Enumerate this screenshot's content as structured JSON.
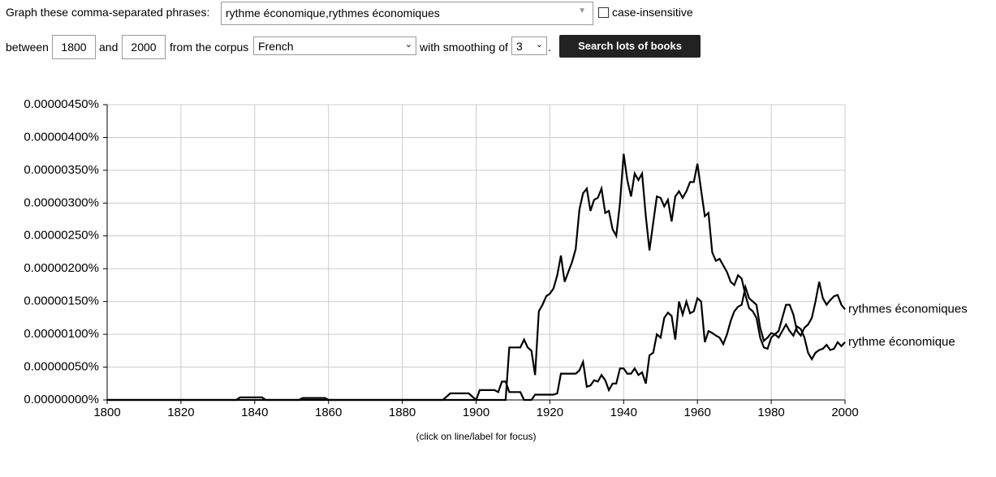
{
  "form": {
    "phrases_label": "Graph these comma-separated phrases:",
    "phrases": "rythme économique,rythmes économiques",
    "case_label": "case-insensitive",
    "between": "between",
    "start": "1800",
    "and": "and",
    "end": "2000",
    "corpus_label": "from the corpus",
    "corpus": "French",
    "smoothing_label": "with smoothing of",
    "smoothing": "3",
    "period": ".",
    "button": "Search lots of books"
  },
  "chart_data": {
    "type": "line",
    "note": "(click on line/label for focus)",
    "xlim": [
      1800,
      2000
    ],
    "xticks": [
      1800,
      1820,
      1840,
      1860,
      1880,
      1900,
      1920,
      1940,
      1960,
      1980,
      2000
    ],
    "ylim": [
      0,
      4.5e-06
    ],
    "yticks": [
      {
        "value": 0,
        "label": "0.00000000%"
      },
      {
        "value": 5e-07,
        "label": "0.00000050%"
      },
      {
        "value": 1e-06,
        "label": "0.00000100%"
      },
      {
        "value": 1.5e-06,
        "label": "0.00000150%"
      },
      {
        "value": 2e-06,
        "label": "0.00000200%"
      },
      {
        "value": 2.5e-06,
        "label": "0.00000250%"
      },
      {
        "value": 3e-06,
        "label": "0.00000300%"
      },
      {
        "value": 3.5e-06,
        "label": "0.00000350%"
      },
      {
        "value": 4e-06,
        "label": "0.00000400%"
      },
      {
        "value": 4.5e-06,
        "label": "0.00000450%"
      }
    ],
    "grid": true,
    "series": [
      {
        "name": "rythmes économiques",
        "color": "#000000",
        "x": [
          1800,
          1908,
          1909,
          1912,
          1913,
          1914,
          1915,
          1916,
          1917,
          1918,
          1919,
          1920,
          1921,
          1922,
          1923,
          1924,
          1925,
          1926,
          1927,
          1928,
          1929,
          1930,
          1931,
          1932,
          1933,
          1934,
          1935,
          1936,
          1937,
          1938,
          1939,
          1940,
          1941,
          1942,
          1943,
          1944,
          1945,
          1946,
          1947,
          1948,
          1949,
          1950,
          1951,
          1952,
          1953,
          1954,
          1955,
          1956,
          1957,
          1958,
          1959,
          1960,
          1961,
          1962,
          1963,
          1964,
          1965,
          1966,
          1967,
          1968,
          1969,
          1970,
          1971,
          1972,
          1973,
          1974,
          1975,
          1976,
          1977,
          1978,
          1979,
          1980,
          1981,
          1982,
          1983,
          1984,
          1985,
          1986,
          1987,
          1988,
          1989,
          1990,
          1991,
          1992,
          1993,
          1994,
          1995,
          1996,
          1997,
          1998,
          1999,
          2000
        ],
        "values": [
          0,
          0,
          8e-07,
          8e-07,
          9.2e-07,
          8e-07,
          7.5e-07,
          3.8e-07,
          1.35e-06,
          1.45e-06,
          1.58e-06,
          1.62e-06,
          1.7e-06,
          1.9e-06,
          2.2e-06,
          1.8e-06,
          1.95e-06,
          2.1e-06,
          2.3e-06,
          2.9e-06,
          3.15e-06,
          3.22e-06,
          2.88e-06,
          3.05e-06,
          3.08e-06,
          3.22e-06,
          2.85e-06,
          2.88e-06,
          2.6e-06,
          2.5e-06,
          3e-06,
          3.75e-06,
          3.35e-06,
          3.1e-06,
          3.45e-06,
          3.35e-06,
          3.45e-06,
          2.8e-06,
          2.28e-06,
          2.7e-06,
          3.1e-06,
          3.08e-06,
          2.95e-06,
          3.05e-06,
          2.72e-06,
          3.1e-06,
          3.18e-06,
          3.08e-06,
          3.18e-06,
          3.32e-06,
          3.32e-06,
          3.6e-06,
          3.2e-06,
          2.8e-06,
          2.85e-06,
          2.25e-06,
          2.12e-06,
          2.15e-06,
          2.05e-06,
          1.95e-06,
          1.8e-06,
          1.75e-06,
          1.9e-06,
          1.85e-06,
          1.6e-06,
          1.4e-06,
          1.35e-06,
          1.25e-06,
          9.5e-07,
          8e-07,
          7.8e-07,
          9.5e-07,
          1e-06,
          1.05e-06,
          1.25e-06,
          1.45e-06,
          1.45e-06,
          1.3e-06,
          1.05e-06,
          9.8e-07,
          1.1e-06,
          1.15e-06,
          1.25e-06,
          1.5e-06,
          1.8e-06,
          1.55e-06,
          1.45e-06,
          1.52e-06,
          1.58e-06,
          1.6e-06,
          1.45e-06,
          1.38e-06
        ]
      },
      {
        "name": "rythme économique",
        "color": "#000000",
        "x": [
          1800,
          1835,
          1836,
          1842,
          1843,
          1852,
          1853,
          1859,
          1860,
          1891,
          1893,
          1898,
          1899,
          1900,
          1901,
          1905,
          1906,
          1907,
          1908,
          1909,
          1912,
          1913,
          1915,
          1916,
          1921,
          1922,
          1923,
          1927,
          1928,
          1929,
          1930,
          1931,
          1932,
          1933,
          1934,
          1935,
          1936,
          1937,
          1938,
          1939,
          1940,
          1941,
          1942,
          1943,
          1944,
          1945,
          1946,
          1947,
          1948,
          1949,
          1950,
          1951,
          1952,
          1953,
          1954,
          1955,
          1956,
          1957,
          1958,
          1959,
          1960,
          1961,
          1962,
          1963,
          1964,
          1965,
          1966,
          1967,
          1968,
          1969,
          1970,
          1971,
          1972,
          1973,
          1974,
          1975,
          1976,
          1977,
          1978,
          1979,
          1980,
          1981,
          1982,
          1983,
          1984,
          1985,
          1986,
          1987,
          1988,
          1989,
          1990,
          1991,
          1992,
          1993,
          1994,
          1995,
          1996,
          1997,
          1998,
          1999,
          2000
        ],
        "values": [
          0,
          0,
          4e-08,
          4e-08,
          0,
          0,
          3e-08,
          3e-08,
          0,
          0,
          1e-07,
          1e-07,
          5e-08,
          0,
          1.5e-07,
          1.5e-07,
          1.2e-07,
          2.8e-07,
          2.8e-07,
          1.2e-07,
          1.2e-07,
          0,
          0,
          8e-08,
          8e-08,
          1e-07,
          4e-07,
          4e-07,
          4.5e-07,
          5.8e-07,
          2e-07,
          2.2e-07,
          3e-07,
          2.8e-07,
          3.8e-07,
          3e-07,
          1.5e-07,
          2.5e-07,
          2.5e-07,
          4.8e-07,
          4.8e-07,
          4e-07,
          4e-07,
          4.8e-07,
          3.8e-07,
          4.2e-07,
          2.5e-07,
          6.8e-07,
          7.2e-07,
          1e-06,
          9.5e-07,
          1.25e-06,
          1.33e-06,
          1.28e-06,
          9.2e-07,
          1.5e-06,
          1.3e-06,
          1.5e-06,
          1.32e-06,
          1.35e-06,
          1.55e-06,
          1.5e-06,
          8.8e-07,
          1.05e-06,
          1.02e-06,
          9.8e-07,
          9.5e-07,
          8.5e-07,
          1e-06,
          1.2e-06,
          1.35e-06,
          1.42e-06,
          1.45e-06,
          1.72e-06,
          1.55e-06,
          1.5e-06,
          1.45e-06,
          1.1e-06,
          9e-07,
          9.5e-07,
          1.02e-06,
          1e-06,
          9.5e-07,
          1.05e-06,
          1.15e-06,
          1.05e-06,
          9.8e-07,
          1.12e-06,
          1.08e-06,
          9.5e-07,
          7.2e-07,
          6.2e-07,
          7.2e-07,
          7.6e-07,
          7.8e-07,
          8.4e-07,
          7.6e-07,
          7.8e-07,
          8.8e-07,
          8.2e-07,
          8.8e-07
        ]
      }
    ]
  }
}
